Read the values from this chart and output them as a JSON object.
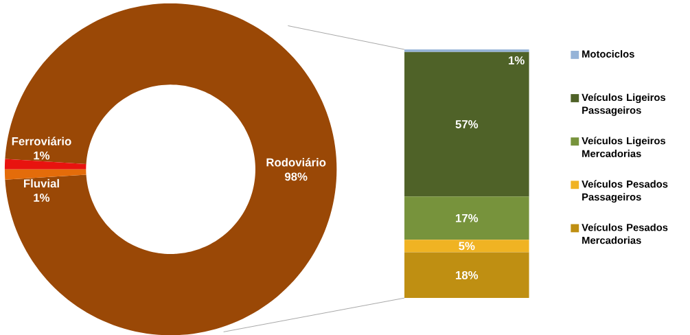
{
  "chart_data": [
    {
      "type": "donut",
      "categories": [
        "Rodoviário",
        "Ferroviário",
        "Fluvial"
      ],
      "values": [
        98,
        1,
        1
      ],
      "colors": [
        "#9a4806",
        "#e8130f",
        "#e46c0a"
      ],
      "value_labels": [
        "98%",
        "1%",
        "1%"
      ]
    },
    {
      "type": "bar",
      "stacked": true,
      "categories": [
        null
      ],
      "legend": "right",
      "series": [
        {
          "name": "Veículos Pesados Mercadorias",
          "color": "#bf8f12",
          "values": [
            18
          ],
          "value_labels": [
            "18%"
          ]
        },
        {
          "name": "Veículos Pesados Passageiros",
          "color": "#f0b323",
          "values": [
            5
          ],
          "value_labels": [
            "5%"
          ]
        },
        {
          "name": "Veículos Ligeiros Mercadorias",
          "color": "#77933c",
          "values": [
            17
          ],
          "value_labels": [
            "17%"
          ]
        },
        {
          "name": "Veículos Ligeiros Passageiros",
          "color": "#4f6228",
          "values": [
            57
          ],
          "value_labels": [
            "57%"
          ]
        },
        {
          "name": "Motociclos",
          "color": "#95b3d7",
          "values": [
            1
          ],
          "value_labels": [
            "1%"
          ]
        }
      ]
    }
  ]
}
